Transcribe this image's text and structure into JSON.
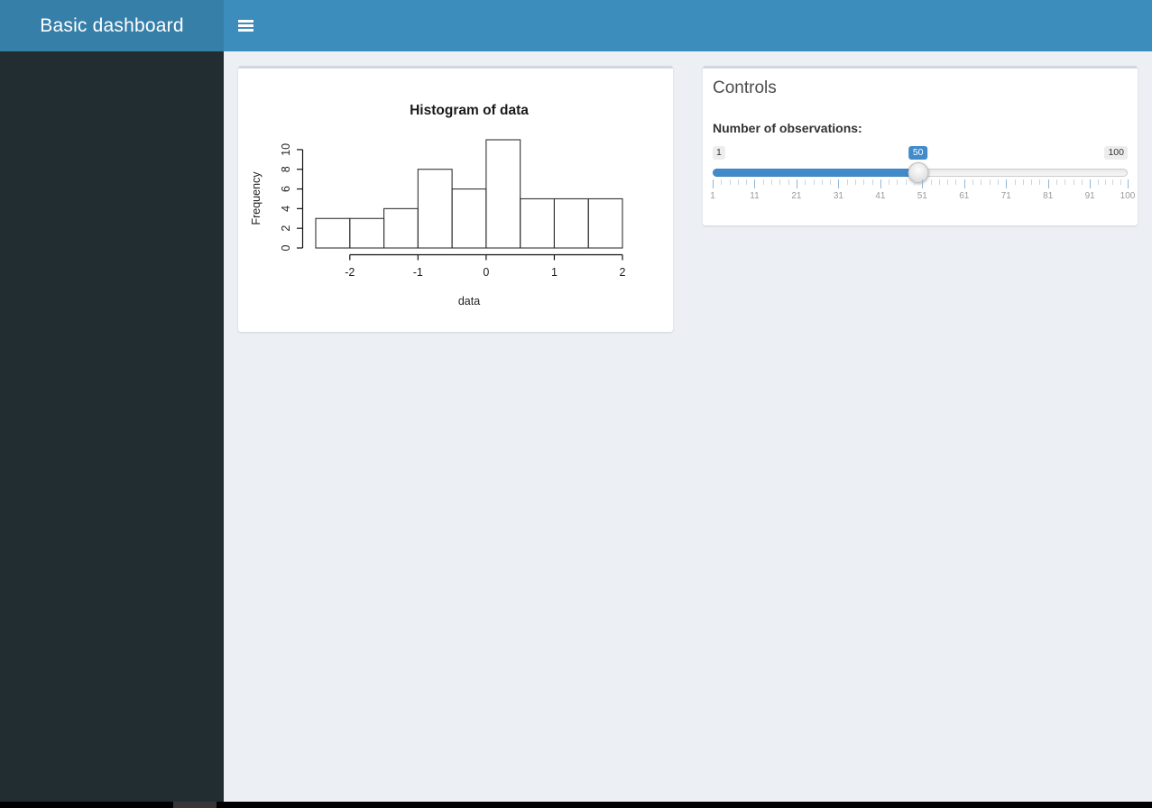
{
  "header": {
    "title": "Basic dashboard"
  },
  "controls_box": {
    "title": "Controls",
    "slider": {
      "label": "Number of observations:",
      "min": 1,
      "max": 100,
      "value": 50,
      "min_label": "1",
      "max_label": "100",
      "value_label": "50",
      "grid_labels": [
        "1",
        "11",
        "21",
        "31",
        "41",
        "51",
        "61",
        "71",
        "81",
        "91",
        "100"
      ]
    }
  },
  "chart_data": {
    "type": "bar",
    "title": "Histogram of data",
    "xlabel": "data",
    "ylabel": "Frequency",
    "bin_start": -2.5,
    "bin_width": 0.5,
    "counts": [
      3,
      3,
      4,
      8,
      6,
      11,
      5,
      5,
      5
    ],
    "x_ticks": [
      -2,
      -1,
      0,
      1,
      2
    ],
    "y_ticks": [
      0,
      2,
      4,
      6,
      8,
      10
    ],
    "xlim": [
      -2.5,
      2
    ],
    "ylim": [
      0,
      11
    ],
    "grid": false,
    "bar_fill": "none",
    "bar_stroke": "#333333"
  },
  "colors": {
    "navbar": "#3c8dbc",
    "logo_bg": "#367fa9",
    "sidebar_bg": "#222d32",
    "content_bg": "#ecf0f5",
    "box_top_border": "#d2d6de",
    "accent": "#428bca"
  }
}
